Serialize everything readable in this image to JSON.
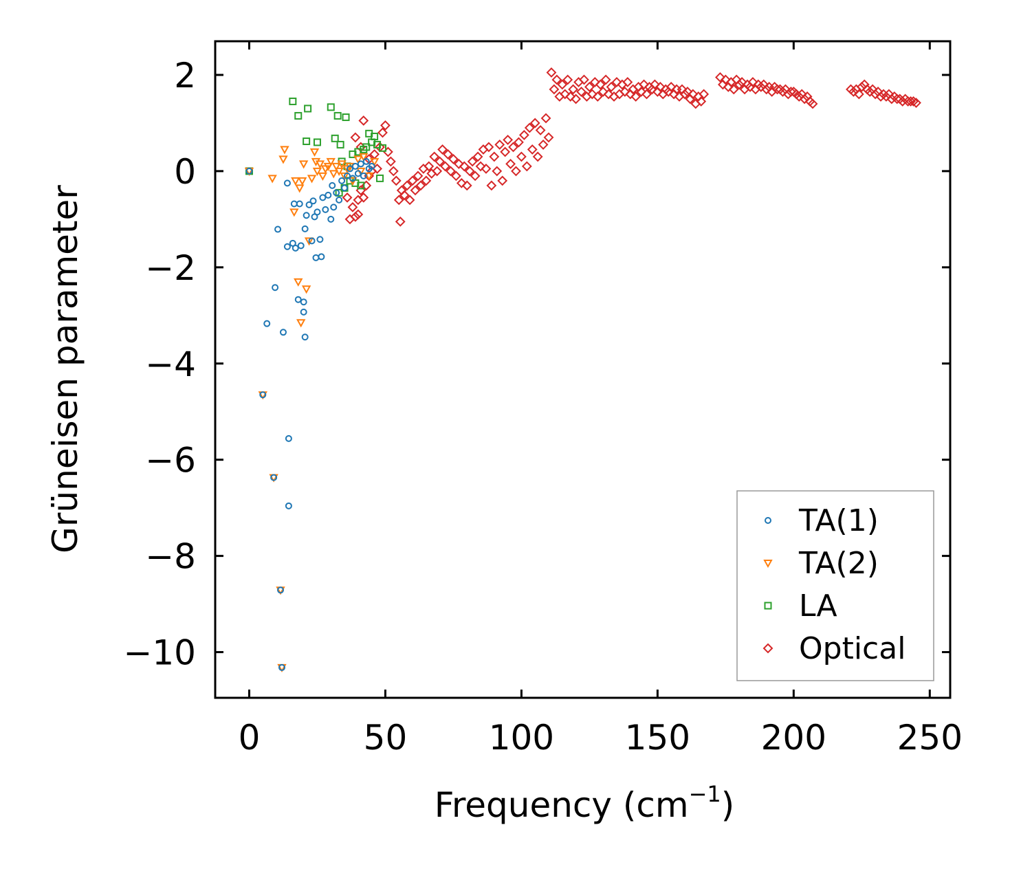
{
  "chart_data": {
    "type": "scatter",
    "title": "",
    "xlabel": "Frequency (cm",
    "xlabel_sup": "−1",
    "xlabel_end": ")",
    "ylabel": "Grüneisen parameter",
    "xlim": [
      -12.5,
      257.5
    ],
    "ylim": [
      -10.95,
      2.7
    ],
    "xticks": [
      0,
      50,
      100,
      150,
      200,
      250
    ],
    "xtick_labels": [
      "0",
      "50",
      "100",
      "150",
      "200",
      "250"
    ],
    "yticks": [
      2,
      0,
      -2,
      -4,
      -6,
      -8,
      -10
    ],
    "ytick_labels": [
      "2",
      "0",
      "−2",
      "−4",
      "−6",
      "−8",
      "−10"
    ],
    "legend_position": "lower-right",
    "series": [
      {
        "name": "TA(1)",
        "marker": "circle",
        "color": "#1f77b4",
        "points": [
          [
            0,
            0
          ],
          [
            5,
            -4.65
          ],
          [
            6.5,
            -3.17
          ],
          [
            9,
            -6.37
          ],
          [
            9.5,
            -2.42
          ],
          [
            10.5,
            -1.21
          ],
          [
            11.5,
            -8.71
          ],
          [
            12,
            -10.32
          ],
          [
            12.5,
            -3.35
          ],
          [
            14,
            -0.25
          ],
          [
            14,
            -1.57
          ],
          [
            14.5,
            -5.56
          ],
          [
            14.5,
            -6.96
          ],
          [
            16,
            -1.5
          ],
          [
            16.5,
            -0.68
          ],
          [
            17,
            -1.6
          ],
          [
            18,
            -2.67
          ],
          [
            18.5,
            -0.68
          ],
          [
            19,
            -1.55
          ],
          [
            20,
            -2.72
          ],
          [
            20,
            -2.93
          ],
          [
            20.5,
            -1.2
          ],
          [
            20.5,
            -3.45
          ],
          [
            21,
            -0.92
          ],
          [
            22,
            -0.7
          ],
          [
            23,
            -1.45
          ],
          [
            23.5,
            -0.62
          ],
          [
            24,
            -0.95
          ],
          [
            24.5,
            -1.8
          ],
          [
            25,
            -0.85
          ],
          [
            26,
            -1.42
          ],
          [
            26.5,
            -1.78
          ],
          [
            27,
            -0.55
          ],
          [
            28,
            -0.8
          ],
          [
            29,
            -0.5
          ],
          [
            30,
            -1.0
          ],
          [
            30.5,
            -0.3
          ],
          [
            31,
            -0.75
          ],
          [
            32,
            -0.45
          ],
          [
            33,
            -0.6
          ],
          [
            34,
            -0.2
          ],
          [
            35,
            -0.35
          ],
          [
            36,
            -0.1
          ],
          [
            37,
            0.05
          ],
          [
            38,
            -0.15
          ],
          [
            39,
            0.1
          ],
          [
            40,
            -0.05
          ],
          [
            41,
            0.15
          ],
          [
            42,
            -0.1
          ],
          [
            43,
            0.2
          ],
          [
            44,
            0.05
          ],
          [
            45,
            0.1
          ]
        ]
      },
      {
        "name": "TA(2)",
        "marker": "triangle-down",
        "color": "#ff7f0e",
        "points": [
          [
            0,
            0
          ],
          [
            5,
            -4.65
          ],
          [
            8.5,
            -0.15
          ],
          [
            9,
            -6.37
          ],
          [
            11.5,
            -8.71
          ],
          [
            12,
            -10.32
          ],
          [
            12.5,
            0.25
          ],
          [
            13,
            0.45
          ],
          [
            16.5,
            -0.85
          ],
          [
            17,
            -0.2
          ],
          [
            18,
            -2.3
          ],
          [
            18.5,
            -0.35
          ],
          [
            19,
            -3.15
          ],
          [
            19.5,
            -0.2
          ],
          [
            20,
            0.15
          ],
          [
            21,
            -2.45
          ],
          [
            22,
            -1.45
          ],
          [
            23,
            -0.15
          ],
          [
            24,
            0.4
          ],
          [
            24.5,
            0.2
          ],
          [
            25,
            0.0
          ],
          [
            26,
            0.15
          ],
          [
            27,
            -0.1
          ],
          [
            28,
            0.05
          ],
          [
            29,
            0.1
          ],
          [
            30,
            0.2
          ],
          [
            31,
            -0.05
          ],
          [
            32,
            0.1
          ],
          [
            33,
            0.0
          ],
          [
            34,
            0.15
          ],
          [
            35,
            -0.1
          ],
          [
            36,
            0.05
          ],
          [
            37,
            0.1
          ],
          [
            38,
            -0.2
          ],
          [
            40,
            0.25
          ],
          [
            41,
            0.0
          ],
          [
            42,
            0.3
          ],
          [
            44,
            -0.1
          ],
          [
            46,
            0.2
          ]
        ]
      },
      {
        "name": "LA",
        "marker": "square",
        "color": "#2ca02c",
        "points": [
          [
            0,
            0
          ],
          [
            16,
            1.45
          ],
          [
            18,
            1.15
          ],
          [
            21,
            0.62
          ],
          [
            21.5,
            1.3
          ],
          [
            25,
            0.6
          ],
          [
            30,
            1.33
          ],
          [
            31.5,
            0.68
          ],
          [
            32.5,
            1.15
          ],
          [
            33.5,
            0.55
          ],
          [
            35.5,
            1.12
          ],
          [
            38,
            0.35
          ],
          [
            40,
            0.4
          ],
          [
            42,
            0.45
          ],
          [
            43,
            0.5
          ],
          [
            44,
            0.78
          ],
          [
            45,
            0.6
          ],
          [
            46,
            0.72
          ],
          [
            47,
            0.55
          ],
          [
            48,
            -0.15
          ],
          [
            49,
            0.48
          ],
          [
            39,
            -0.25
          ],
          [
            41,
            -0.3
          ],
          [
            33,
            -0.45
          ],
          [
            35,
            -0.35
          ],
          [
            37,
            -0.2
          ],
          [
            36,
            0.1
          ],
          [
            34,
            0.2
          ]
        ]
      },
      {
        "name": "Optical",
        "marker": "diamond",
        "color": "#d62728",
        "points": [
          [
            36,
            -0.55
          ],
          [
            37,
            -1.0
          ],
          [
            38,
            -0.75
          ],
          [
            39,
            -0.95
          ],
          [
            40,
            -0.9
          ],
          [
            40,
            -0.6
          ],
          [
            41,
            -0.4
          ],
          [
            42,
            -0.55
          ],
          [
            43,
            -0.3
          ],
          [
            44,
            -0.1
          ],
          [
            39,
            0.7
          ],
          [
            41,
            0.5
          ],
          [
            42,
            1.05
          ],
          [
            44,
            0.25
          ],
          [
            45,
            0.0
          ],
          [
            46,
            0.35
          ],
          [
            47,
            0.05
          ],
          [
            48,
            0.5
          ],
          [
            49,
            0.8
          ],
          [
            50,
            0.95
          ],
          [
            51,
            0.4
          ],
          [
            52,
            0.2
          ],
          [
            53,
            0.0
          ],
          [
            54,
            -0.2
          ],
          [
            55,
            -0.6
          ],
          [
            55.5,
            -1.05
          ],
          [
            56,
            -0.4
          ],
          [
            57,
            -0.5
          ],
          [
            58,
            -0.3
          ],
          [
            59,
            -0.6
          ],
          [
            60,
            -0.2
          ],
          [
            61,
            -0.4
          ],
          [
            62,
            -0.1
          ],
          [
            63,
            -0.3
          ],
          [
            64,
            0.05
          ],
          [
            65,
            -0.2
          ],
          [
            66,
            0.1
          ],
          [
            67,
            -0.05
          ],
          [
            68,
            0.3
          ],
          [
            69,
            0.0
          ],
          [
            70,
            0.2
          ],
          [
            71,
            0.45
          ],
          [
            72,
            0.1
          ],
          [
            73,
            0.35
          ],
          [
            74,
            0.0
          ],
          [
            75,
            0.25
          ],
          [
            76,
            -0.1
          ],
          [
            77,
            0.15
          ],
          [
            78,
            -0.25
          ],
          [
            79,
            0.1
          ],
          [
            80,
            -0.3
          ],
          [
            81,
            0.0
          ],
          [
            82,
            0.2
          ],
          [
            83,
            -0.1
          ],
          [
            84,
            0.3
          ],
          [
            85,
            0.1
          ],
          [
            86,
            0.45
          ],
          [
            87,
            0.05
          ],
          [
            88,
            0.5
          ],
          [
            89,
            -0.3
          ],
          [
            90,
            0.3
          ],
          [
            91,
            0.0
          ],
          [
            92,
            0.55
          ],
          [
            93,
            -0.2
          ],
          [
            94,
            0.4
          ],
          [
            95,
            0.65
          ],
          [
            96,
            0.15
          ],
          [
            97,
            0.5
          ],
          [
            98,
            0.0
          ],
          [
            99,
            0.6
          ],
          [
            100,
            0.3
          ],
          [
            101,
            0.75
          ],
          [
            102,
            0.1
          ],
          [
            103,
            0.9
          ],
          [
            104,
            0.45
          ],
          [
            105,
            1.0
          ],
          [
            106,
            0.3
          ],
          [
            107,
            0.85
          ],
          [
            108,
            0.55
          ],
          [
            109,
            1.1
          ],
          [
            110,
            0.7
          ],
          [
            111,
            2.05
          ],
          [
            112,
            1.7
          ],
          [
            113,
            1.9
          ],
          [
            114,
            1.55
          ],
          [
            115,
            1.8
          ],
          [
            116,
            1.6
          ],
          [
            117,
            1.9
          ],
          [
            118,
            1.55
          ],
          [
            119,
            1.7
          ],
          [
            120,
            1.5
          ],
          [
            121,
            1.85
          ],
          [
            122,
            1.65
          ],
          [
            123,
            1.9
          ],
          [
            124,
            1.55
          ],
          [
            125,
            1.75
          ],
          [
            126,
            1.6
          ],
          [
            127,
            1.85
          ],
          [
            128,
            1.55
          ],
          [
            129,
            1.8
          ],
          [
            130,
            1.65
          ],
          [
            131,
            1.9
          ],
          [
            132,
            1.6
          ],
          [
            133,
            1.75
          ],
          [
            134,
            1.55
          ],
          [
            135,
            1.85
          ],
          [
            136,
            1.6
          ],
          [
            137,
            1.8
          ],
          [
            138,
            1.65
          ],
          [
            139,
            1.85
          ],
          [
            140,
            1.6
          ],
          [
            141,
            1.7
          ],
          [
            142,
            1.55
          ],
          [
            143,
            1.75
          ],
          [
            144,
            1.65
          ],
          [
            145,
            1.8
          ],
          [
            146,
            1.6
          ],
          [
            147,
            1.75
          ],
          [
            148,
            1.7
          ],
          [
            149,
            1.8
          ],
          [
            150,
            1.65
          ],
          [
            151,
            1.75
          ],
          [
            152,
            1.6
          ],
          [
            153,
            1.7
          ],
          [
            154,
            1.65
          ],
          [
            155,
            1.75
          ],
          [
            156,
            1.6
          ],
          [
            157,
            1.7
          ],
          [
            158,
            1.55
          ],
          [
            159,
            1.7
          ],
          [
            160,
            1.6
          ],
          [
            161,
            1.65
          ],
          [
            162,
            1.5
          ],
          [
            163,
            1.6
          ],
          [
            164,
            1.4
          ],
          [
            165,
            1.55
          ],
          [
            166,
            1.45
          ],
          [
            167,
            1.6
          ],
          [
            173,
            1.95
          ],
          [
            174,
            1.8
          ],
          [
            175,
            1.9
          ],
          [
            176,
            1.75
          ],
          [
            177,
            1.85
          ],
          [
            178,
            1.7
          ],
          [
            179,
            1.9
          ],
          [
            180,
            1.8
          ],
          [
            181,
            1.85
          ],
          [
            182,
            1.7
          ],
          [
            183,
            1.8
          ],
          [
            184,
            1.75
          ],
          [
            185,
            1.85
          ],
          [
            186,
            1.7
          ],
          [
            187,
            1.8
          ],
          [
            188,
            1.75
          ],
          [
            189,
            1.8
          ],
          [
            190,
            1.7
          ],
          [
            191,
            1.75
          ],
          [
            192,
            1.65
          ],
          [
            193,
            1.75
          ],
          [
            194,
            1.7
          ],
          [
            195,
            1.7
          ],
          [
            196,
            1.65
          ],
          [
            197,
            1.7
          ],
          [
            198,
            1.6
          ],
          [
            199,
            1.65
          ],
          [
            200,
            1.65
          ],
          [
            201,
            1.6
          ],
          [
            202,
            1.55
          ],
          [
            203,
            1.6
          ],
          [
            204,
            1.5
          ],
          [
            205,
            1.55
          ],
          [
            206,
            1.45
          ],
          [
            207,
            1.4
          ],
          [
            221,
            1.7
          ],
          [
            222,
            1.65
          ],
          [
            223,
            1.7
          ],
          [
            224,
            1.6
          ],
          [
            225,
            1.75
          ],
          [
            226,
            1.8
          ],
          [
            227,
            1.7
          ],
          [
            228,
            1.65
          ],
          [
            229,
            1.7
          ],
          [
            230,
            1.6
          ],
          [
            231,
            1.65
          ],
          [
            232,
            1.55
          ],
          [
            233,
            1.6
          ],
          [
            234,
            1.55
          ],
          [
            235,
            1.6
          ],
          [
            236,
            1.5
          ],
          [
            237,
            1.55
          ],
          [
            238,
            1.5
          ],
          [
            239,
            1.5
          ],
          [
            240,
            1.45
          ],
          [
            241,
            1.5
          ],
          [
            242,
            1.45
          ],
          [
            243,
            1.45
          ],
          [
            244,
            1.45
          ],
          [
            245,
            1.42
          ]
        ]
      }
    ]
  }
}
